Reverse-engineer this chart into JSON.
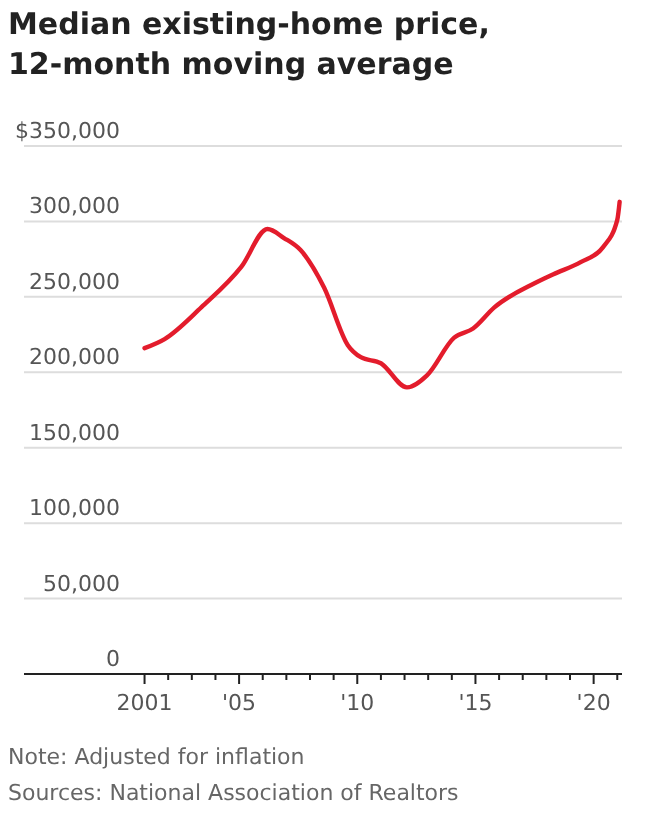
{
  "chart_data": {
    "type": "line",
    "title": "Median existing-home price, 12-month moving average",
    "annotations": [
      "Note: Adjusted for inflation",
      "Sources: National Association of Realtors"
    ],
    "x": [
      2001,
      2001.85,
      2003.4,
      2005.1,
      2006.2,
      2006.9,
      2007.6,
      2008.6,
      2009.6,
      2010.15,
      2011,
      2012.1,
      2012.95,
      2014.1,
      2014.9,
      2015.8,
      2017.5,
      2018.3,
      2019.45,
      2020.4,
      2021,
      2021.1
    ],
    "series": [
      {
        "color": "#e31c2c",
        "values": [
          216000,
          222000,
          243000,
          270000,
          295000,
          289000,
          281000,
          256000,
          218000,
          210000,
          206000,
          190000,
          198000,
          223000,
          229000,
          243000,
          259000,
          265000,
          273000,
          283000,
          301000,
          313000
        ]
      }
    ],
    "xlim": [
      1995.9,
      2021.2
    ],
    "xticks": [
      2001,
      {
        "value": 2002,
        "label": null
      },
      {
        "value": 2003,
        "label": null
      },
      {
        "value": 2004,
        "label": null
      },
      {
        "value": 2005,
        "label": "'05"
      },
      {
        "value": 2006,
        "label": null
      },
      {
        "value": 2007,
        "label": null
      },
      {
        "value": 2008,
        "label": null
      },
      {
        "value": 2009,
        "label": null
      },
      {
        "value": 2010,
        "label": "'10"
      },
      {
        "value": 2011,
        "label": null
      },
      {
        "value": 2012,
        "label": null
      },
      {
        "value": 2013,
        "label": null
      },
      {
        "value": 2014,
        "label": null
      },
      {
        "value": 2015,
        "label": "'15"
      },
      {
        "value": 2016,
        "label": null
      },
      {
        "value": 2017,
        "label": null
      },
      {
        "value": 2018,
        "label": null
      },
      {
        "value": 2019,
        "label": null
      },
      {
        "value": 2020,
        "label": "'20"
      },
      {
        "value": 2021,
        "label": null
      }
    ],
    "ylim": [
      0,
      350000
    ],
    "yticks": [
      0,
      "50,000",
      "100,000",
      "150,000",
      "200,000",
      "250,000",
      "300,000",
      {
        "value": 350000,
        "label": "$350,000"
      }
    ],
    "grid": "y",
    "marker": "none",
    "line_style": "solid"
  }
}
